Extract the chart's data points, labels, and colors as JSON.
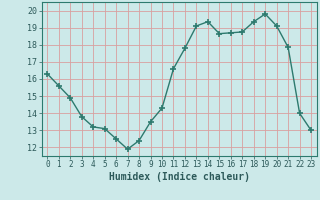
{
  "x": [
    0,
    1,
    2,
    3,
    4,
    5,
    6,
    7,
    8,
    9,
    10,
    11,
    12,
    13,
    14,
    15,
    16,
    17,
    18,
    19,
    20,
    21,
    22,
    23
  ],
  "y": [
    16.3,
    15.6,
    14.9,
    13.8,
    13.2,
    13.1,
    12.5,
    11.9,
    12.4,
    13.5,
    14.3,
    16.6,
    17.8,
    19.1,
    19.35,
    18.65,
    18.7,
    18.75,
    19.35,
    19.8,
    19.1,
    17.85,
    14.0,
    13.0
  ],
  "line_color": "#2d7a6e",
  "marker": "D",
  "marker_size": 2.5,
  "bg_color": "#cce9e9",
  "grid_color": "#d9a0a0",
  "xlabel": "Humidex (Indice chaleur)",
  "xlim": [
    -0.5,
    23.5
  ],
  "ylim": [
    11.5,
    20.5
  ],
  "yticks": [
    12,
    13,
    14,
    15,
    16,
    17,
    18,
    19,
    20
  ],
  "xticks": [
    0,
    1,
    2,
    3,
    4,
    5,
    6,
    7,
    8,
    9,
    10,
    11,
    12,
    13,
    14,
    15,
    16,
    17,
    18,
    19,
    20,
    21,
    22,
    23
  ]
}
